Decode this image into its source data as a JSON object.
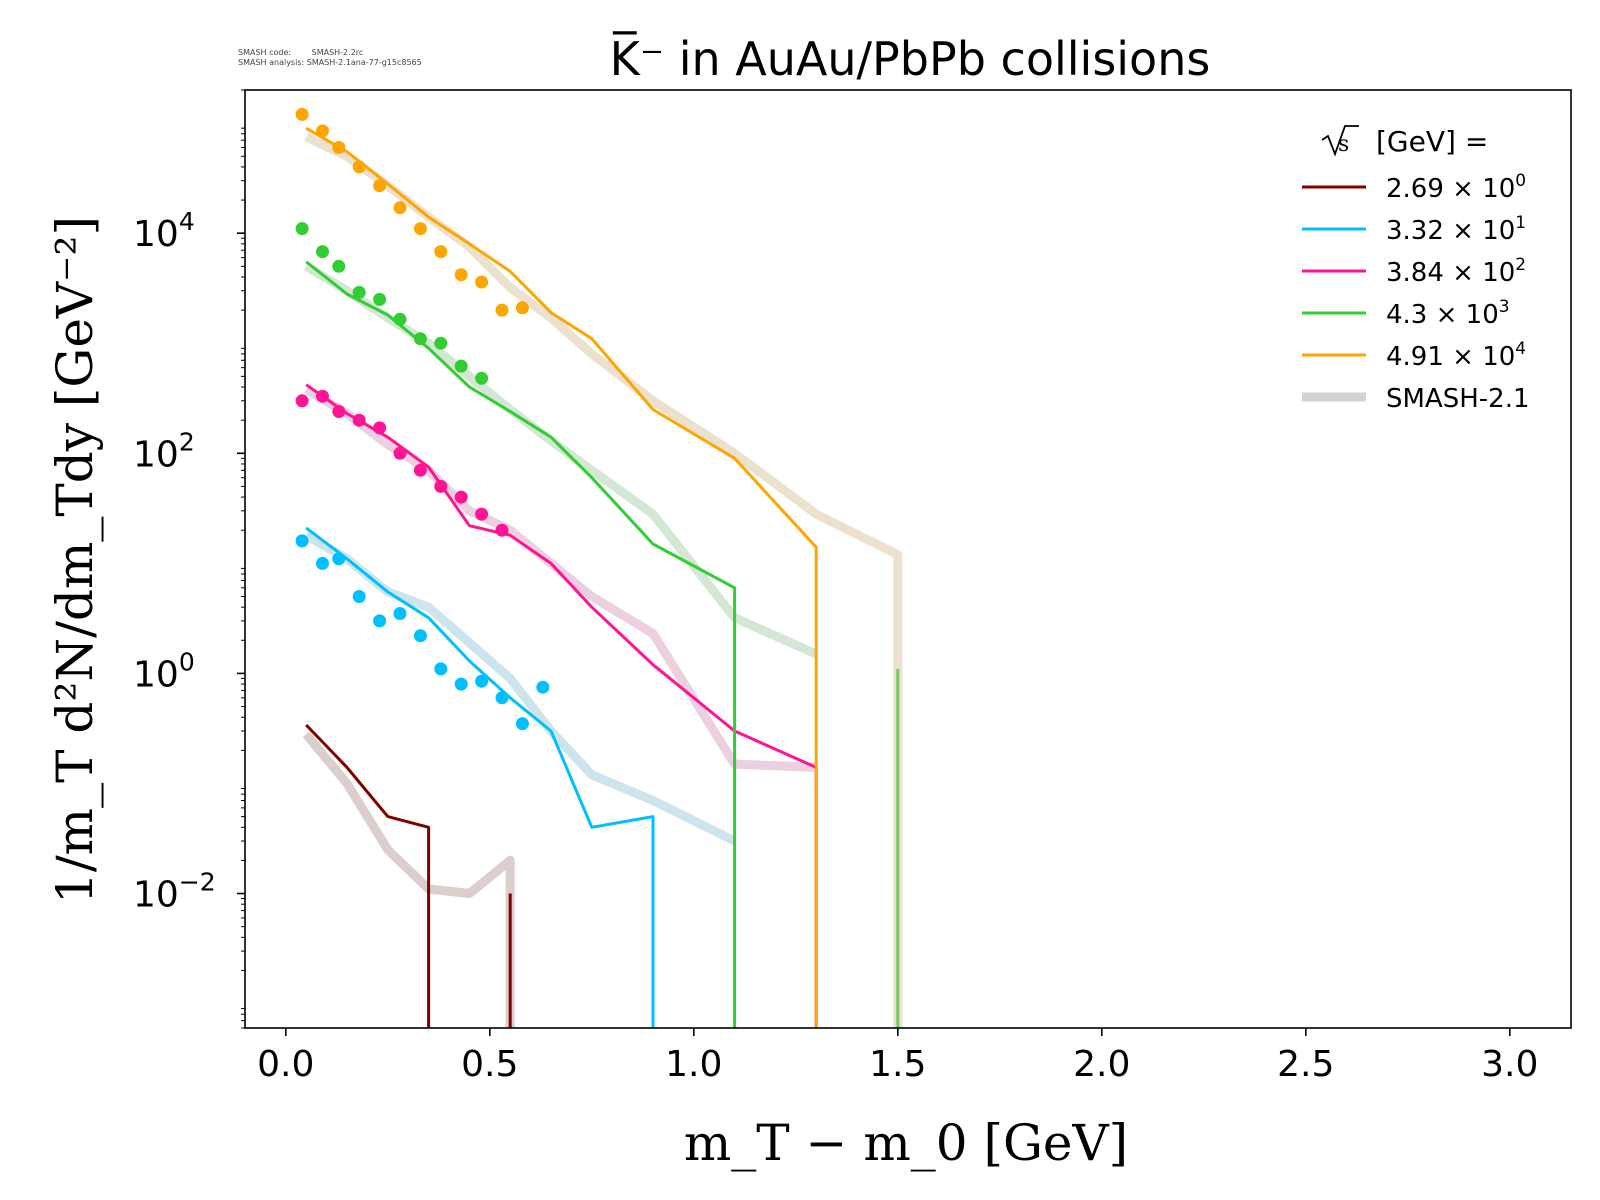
{
  "header": {
    "code_label": "SMASH code:",
    "code_value": "SMASH-2.2rc",
    "analysis_label": "SMASH analysis:",
    "analysis_value": "SMASH-2.1ana-77-g15c8565"
  },
  "chart_data": {
    "type": "line",
    "title": "K̅⁻ in AuAu/PbPb collisions",
    "xlabel": "m_T − m_0 [GeV]",
    "ylabel": "1/m_T d²N/dm_Tdy [GeV⁻²]",
    "y_scale": "log",
    "xlim": [
      -0.1,
      3.15
    ],
    "ylim": [
      0.0006,
      200000
    ],
    "x_ticks": [
      "0.0",
      "0.5",
      "1.0",
      "1.5",
      "2.0",
      "2.5",
      "3.0"
    ],
    "y_ticks": [
      {
        "base": "10",
        "exp": "4",
        "value": 10000
      },
      {
        "base": "10",
        "exp": "2",
        "value": 100
      },
      {
        "base": "10",
        "exp": "0",
        "value": 1
      },
      {
        "base": "10",
        "exp": "−2",
        "value": 0.01
      }
    ],
    "grid": false,
    "legend": {
      "position": "top-right",
      "title": "[GeV] =",
      "title_sqrt": "s",
      "entries": [
        {
          "mantissa": "2.69",
          "exp": "0",
          "color": "#800000"
        },
        {
          "mantissa": "3.32",
          "exp": "1",
          "color": "#00bfff"
        },
        {
          "mantissa": "3.84",
          "exp": "2",
          "color": "#ff1493"
        },
        {
          "mantissa": "4.3",
          "exp": "3",
          "color": "#32cd32"
        },
        {
          "mantissa": "4.91",
          "exp": "4",
          "color": "#ffa500"
        },
        {
          "label": "SMASH-2.1",
          "color": "#d3d3d3"
        }
      ]
    },
    "series": [
      {
        "name": "2.69 × 10⁰",
        "color": "#800000",
        "line": [
          [
            0.05,
            0.34
          ],
          [
            0.15,
            0.14
          ],
          [
            0.25,
            0.05
          ],
          [
            0.35,
            0.04
          ],
          [
            0.35,
            0.0006
          ]
        ],
        "line2": [
          [
            0.55,
            0.01
          ],
          [
            0.55,
            0.0006
          ]
        ],
        "reference": [
          [
            0.05,
            0.28
          ],
          [
            0.15,
            0.1
          ],
          [
            0.25,
            0.025
          ],
          [
            0.35,
            0.011
          ],
          [
            0.45,
            0.01
          ],
          [
            0.55,
            0.02
          ],
          [
            0.55,
            0.0006
          ]
        ],
        "points": []
      },
      {
        "name": "3.32 × 10¹",
        "color": "#00bfff",
        "line": [
          [
            0.05,
            21
          ],
          [
            0.15,
            11
          ],
          [
            0.25,
            5.5
          ],
          [
            0.35,
            3.2
          ],
          [
            0.45,
            1.3
          ],
          [
            0.55,
            0.6
          ],
          [
            0.65,
            0.3
          ],
          [
            0.75,
            0.04
          ],
          [
            0.9,
            0.05
          ],
          [
            0.9,
            0.0006
          ]
        ],
        "reference": [
          [
            0.05,
            18
          ],
          [
            0.15,
            11
          ],
          [
            0.25,
            5.5
          ],
          [
            0.35,
            4
          ],
          [
            0.45,
            1.9
          ],
          [
            0.55,
            0.9
          ],
          [
            0.65,
            0.3
          ],
          [
            0.75,
            0.12
          ],
          [
            0.9,
            0.07
          ],
          [
            1.1,
            0.03
          ]
        ],
        "points": [
          [
            0.04,
            16
          ],
          [
            0.09,
            10
          ],
          [
            0.13,
            11
          ],
          [
            0.18,
            5
          ],
          [
            0.23,
            3
          ],
          [
            0.28,
            3.5
          ],
          [
            0.33,
            2.2
          ],
          [
            0.38,
            1.1
          ],
          [
            0.43,
            0.8
          ],
          [
            0.48,
            0.85
          ],
          [
            0.53,
            0.6
          ],
          [
            0.58,
            0.35
          ],
          [
            0.63,
            0.75
          ]
        ]
      },
      {
        "name": "3.84 × 10²",
        "color": "#ff1493",
        "line": [
          [
            0.05,
            420
          ],
          [
            0.15,
            230
          ],
          [
            0.25,
            140
          ],
          [
            0.35,
            75
          ],
          [
            0.45,
            22
          ],
          [
            0.55,
            18
          ],
          [
            0.65,
            10
          ],
          [
            0.75,
            4
          ],
          [
            0.9,
            1.2
          ],
          [
            1.1,
            0.3
          ],
          [
            1.3,
            0.14
          ],
          [
            1.3,
            0.0006
          ]
        ],
        "reference": [
          [
            0.05,
            380
          ],
          [
            0.15,
            230
          ],
          [
            0.25,
            120
          ],
          [
            0.35,
            70
          ],
          [
            0.45,
            30
          ],
          [
            0.55,
            20
          ],
          [
            0.65,
            10
          ],
          [
            0.75,
            5
          ],
          [
            0.9,
            2.3
          ],
          [
            1.1,
            0.15
          ],
          [
            1.3,
            0.14
          ]
        ],
        "points": [
          [
            0.04,
            300
          ],
          [
            0.09,
            330
          ],
          [
            0.13,
            240
          ],
          [
            0.18,
            200
          ],
          [
            0.23,
            170
          ],
          [
            0.28,
            100
          ],
          [
            0.33,
            70
          ],
          [
            0.38,
            50
          ],
          [
            0.43,
            40
          ],
          [
            0.48,
            28
          ],
          [
            0.53,
            20
          ]
        ]
      },
      {
        "name": "4.3 × 10³",
        "color": "#32cd32",
        "line": [
          [
            0.05,
            5500
          ],
          [
            0.15,
            2800
          ],
          [
            0.25,
            1800
          ],
          [
            0.35,
            900
          ],
          [
            0.45,
            400
          ],
          [
            0.55,
            240
          ],
          [
            0.65,
            140
          ],
          [
            0.75,
            60
          ],
          [
            0.9,
            15
          ],
          [
            1.1,
            6
          ],
          [
            1.1,
            0.0006
          ]
        ],
        "reference": [
          [
            0.05,
            5000
          ],
          [
            0.15,
            3000
          ],
          [
            0.25,
            1700
          ],
          [
            0.35,
            1000
          ],
          [
            0.45,
            500
          ],
          [
            0.55,
            250
          ],
          [
            0.65,
            130
          ],
          [
            0.75,
            70
          ],
          [
            0.9,
            28
          ],
          [
            1.1,
            3.2
          ],
          [
            1.3,
            1.5
          ]
        ],
        "line2": [
          [
            1.5,
            1.1
          ],
          [
            1.5,
            0.0006
          ]
        ],
        "points": [
          [
            0.04,
            11000
          ],
          [
            0.09,
            6800
          ],
          [
            0.13,
            5000
          ],
          [
            0.18,
            2900
          ],
          [
            0.23,
            2500
          ],
          [
            0.28,
            1650
          ],
          [
            0.33,
            1100
          ],
          [
            0.38,
            1000
          ],
          [
            0.43,
            620
          ],
          [
            0.48,
            480
          ]
        ]
      },
      {
        "name": "4.91 × 10⁴",
        "color": "#ffa500",
        "line": [
          [
            0.05,
            90000
          ],
          [
            0.15,
            55000
          ],
          [
            0.25,
            28000
          ],
          [
            0.35,
            14000
          ],
          [
            0.45,
            8000
          ],
          [
            0.55,
            4500
          ],
          [
            0.65,
            1900
          ],
          [
            0.75,
            1100
          ],
          [
            0.9,
            250
          ],
          [
            1.1,
            90
          ],
          [
            1.3,
            14
          ],
          [
            1.3,
            0.0006
          ]
        ],
        "reference": [
          [
            0.05,
            75000
          ],
          [
            0.15,
            50000
          ],
          [
            0.25,
            27000
          ],
          [
            0.35,
            14000
          ],
          [
            0.45,
            7500
          ],
          [
            0.55,
            3200
          ],
          [
            0.65,
            1700
          ],
          [
            0.75,
            800
          ],
          [
            0.9,
            300
          ],
          [
            1.1,
            100
          ],
          [
            1.3,
            28
          ],
          [
            1.5,
            12
          ],
          [
            1.5,
            0.0006
          ]
        ],
        "points": [
          [
            0.04,
            120000
          ],
          [
            0.09,
            85000
          ],
          [
            0.13,
            60000
          ],
          [
            0.18,
            40000
          ],
          [
            0.23,
            27000
          ],
          [
            0.28,
            17000
          ],
          [
            0.33,
            11000
          ],
          [
            0.38,
            6800
          ],
          [
            0.43,
            4200
          ],
          [
            0.48,
            3600
          ],
          [
            0.53,
            2000
          ],
          [
            0.58,
            2100
          ]
        ]
      }
    ]
  }
}
